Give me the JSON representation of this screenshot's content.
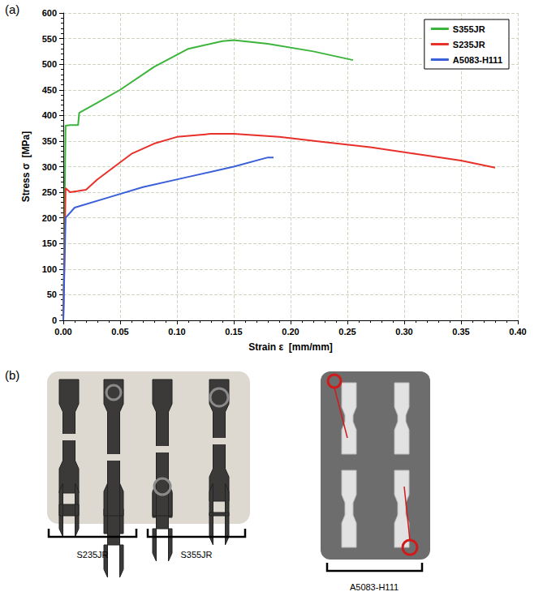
{
  "chart_data": {
    "type": "line",
    "annotations": [
      {
        "text": "(a)"
      }
    ],
    "x_label": "Strain ε  [mm/mm]",
    "y_label": "Stress σ  [MPa]",
    "xlim": [
      0,
      0.4
    ],
    "xticks": [
      {
        "value": 0,
        "label": "0.00"
      },
      {
        "value": 0.05,
        "label": "0.05"
      },
      {
        "value": 0.1,
        "label": "0.10"
      },
      {
        "value": 0.15,
        "label": "0.15"
      },
      {
        "value": 0.2,
        "label": "0.20"
      },
      {
        "value": 0.25,
        "label": "0.25"
      },
      {
        "value": 0.3,
        "label": "0.30"
      },
      {
        "value": 0.35,
        "label": "0.35"
      },
      {
        "value": 0.4,
        "label": "0.40"
      }
    ],
    "ylim": [
      0,
      600
    ],
    "yticks": [
      0,
      50,
      100,
      150,
      200,
      250,
      300,
      350,
      400,
      450,
      500,
      550,
      600
    ],
    "grid": true,
    "legend": "upper right",
    "series": [
      {
        "name": "S355JR",
        "color": "#3cb43c",
        "x": [
          0,
          0.002,
          0.006,
          0.013,
          0.014,
          0.03,
          0.05,
          0.08,
          0.11,
          0.14,
          0.15,
          0.18,
          0.22,
          0.255
        ],
        "values": [
          0,
          380,
          381,
          381,
          405,
          425,
          450,
          495,
          530,
          545,
          547,
          540,
          525,
          508
        ]
      },
      {
        "name": "S235JR",
        "color": "#e8302a",
        "x": [
          0,
          0.002,
          0.006,
          0.012,
          0.02,
          0.03,
          0.045,
          0.06,
          0.08,
          0.1,
          0.13,
          0.15,
          0.19,
          0.23,
          0.27,
          0.31,
          0.35,
          0.38
        ],
        "values": [
          0,
          258,
          250,
          252,
          255,
          275,
          300,
          325,
          345,
          358,
          364,
          364,
          358,
          348,
          338,
          325,
          312,
          298
        ]
      },
      {
        "name": "A5083-H111",
        "color": "#3a5fd9",
        "x": [
          0,
          0.002,
          0.01,
          0.04,
          0.07,
          0.11,
          0.15,
          0.18,
          0.185
        ],
        "values": [
          0,
          200,
          220,
          240,
          260,
          280,
          300,
          318,
          318
        ]
      }
    ]
  },
  "photos": {
    "label": "(b)",
    "groups": [
      "S235JR",
      "S355JR",
      "A5083-H111"
    ]
  }
}
